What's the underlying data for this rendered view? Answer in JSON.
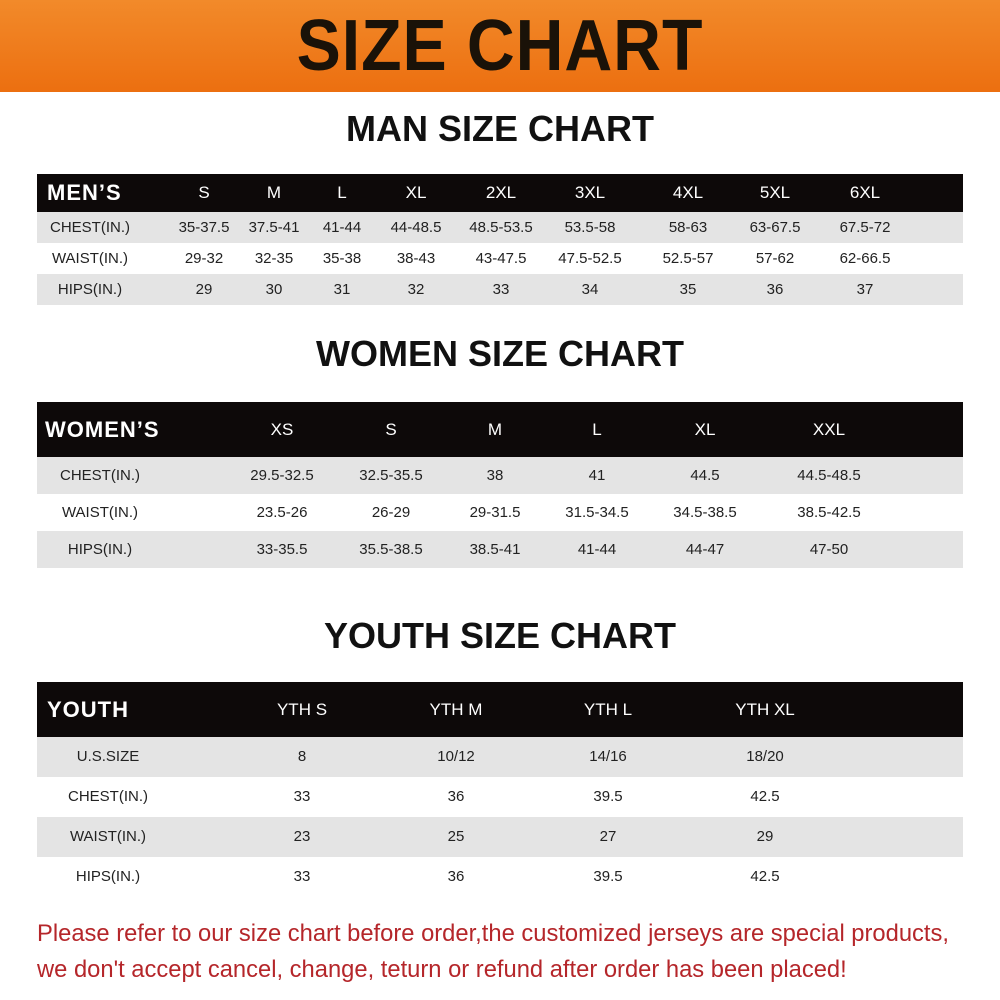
{
  "title": "SIZE CHART",
  "colors": {
    "banner": "#ec7a1a",
    "header_bg": "#0d0909",
    "stripe": "#e4e4e4",
    "notice": "#b5262a"
  },
  "men": {
    "heading": "MAN SIZE CHART",
    "columns": [
      "MEN’S",
      "S",
      "M",
      "L",
      "XL",
      "2XL",
      "3XL",
      "4XL",
      "5XL",
      "6XL"
    ],
    "rows": [
      [
        "CHEST(IN.)",
        "35-37.5",
        "37.5-41",
        "41-44",
        "44-48.5",
        "48.5-53.5",
        "53.5-58",
        "58-63",
        "63-67.5",
        "67.5-72"
      ],
      [
        "WAIST(IN.)",
        "29-32",
        "32-35",
        "35-38",
        "38-43",
        "43-47.5",
        "47.5-52.5",
        "52.5-57",
        "57-62",
        "62-66.5"
      ],
      [
        "HIPS(IN.)",
        "29",
        "30",
        "31",
        "32",
        "33",
        "34",
        "35",
        "36",
        "37"
      ]
    ]
  },
  "women": {
    "heading": "WOMEN SIZE CHART",
    "columns": [
      "WOMEN’S",
      "XS",
      "S",
      "M",
      "L",
      "XL",
      "XXL"
    ],
    "rows": [
      [
        "CHEST(IN.)",
        "29.5-32.5",
        "32.5-35.5",
        "38",
        "41",
        "44.5",
        "44.5-48.5"
      ],
      [
        "WAIST(IN.)",
        "23.5-26",
        "26-29",
        "29-31.5",
        "31.5-34.5",
        "34.5-38.5",
        "38.5-42.5"
      ],
      [
        "HIPS(IN.)",
        "33-35.5",
        "35.5-38.5",
        "38.5-41",
        "41-44",
        "44-47",
        "47-50"
      ]
    ]
  },
  "youth": {
    "heading": "YOUTH SIZE CHART",
    "columns": [
      "YOUTH",
      "YTH S",
      "YTH M",
      "YTH L",
      "YTH XL"
    ],
    "rows": [
      [
        "U.S.SIZE",
        "8",
        "10/12",
        "14/16",
        "18/20"
      ],
      [
        "CHEST(IN.)",
        "33",
        "36",
        "39.5",
        "42.5"
      ],
      [
        "WAIST(IN.)",
        "23",
        "25",
        "27",
        "29"
      ],
      [
        "HIPS(IN.)",
        "33",
        "36",
        "39.5",
        "42.5"
      ]
    ]
  },
  "notice": {
    "line1": "Please refer to our size chart before order,the customized jerseys are special products,",
    "line2": "we don't accept cancel, change, teturn or refund after order has been placed!"
  }
}
